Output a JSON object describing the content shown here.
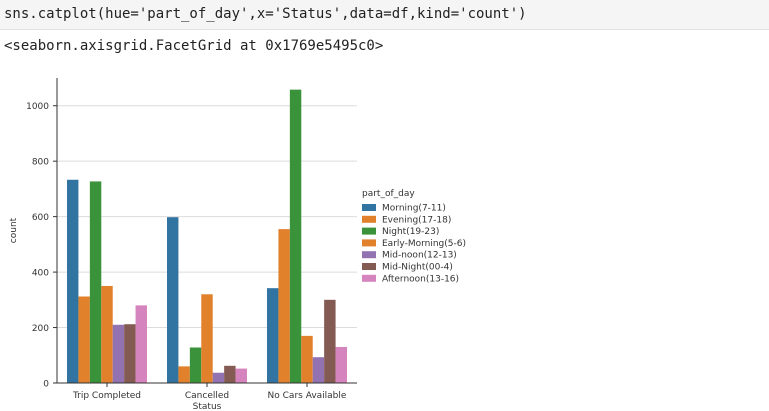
{
  "code_cell": {
    "source": "sns.catplot(hue='part_of_day',x='Status',data=df,kind='count')"
  },
  "output": {
    "repr": "<seaborn.axisgrid.FacetGrid at 0x1769e5495c0>"
  },
  "chart_data": {
    "type": "bar",
    "title": "",
    "xlabel": "Status",
    "ylabel": "count",
    "categories": [
      "Trip Completed",
      "Cancelled",
      "No Cars Available"
    ],
    "ylim": [
      0,
      1100
    ],
    "yticks": [
      0,
      200,
      400,
      600,
      800,
      1000
    ],
    "grid": "horizontal",
    "legend_title": "part_of_day",
    "legend_placement": "right",
    "series": [
      {
        "name": "Morning(7-11)",
        "color": "#3274a1",
        "values": [
          733,
          598,
          342
        ]
      },
      {
        "name": "Evening(17-18)",
        "color": "#e1812c",
        "values": [
          312,
          60,
          555
        ]
      },
      {
        "name": "Night(19-23)",
        "color": "#3a923a",
        "values": [
          727,
          128,
          1058
        ]
      },
      {
        "name": "Early-Morning(5-6)",
        "color": "#e1812c",
        "values": [
          350,
          320,
          170
        ]
      },
      {
        "name": "Mid-noon(12-13)",
        "color": "#9372b2",
        "values": [
          210,
          37,
          93
        ]
      },
      {
        "name": "Mid-Night(00-4)",
        "color": "#845b53",
        "values": [
          212,
          62,
          300
        ]
      },
      {
        "name": "Afternoon(13-16)",
        "color": "#d684bd",
        "values": [
          280,
          52,
          130
        ]
      }
    ]
  }
}
